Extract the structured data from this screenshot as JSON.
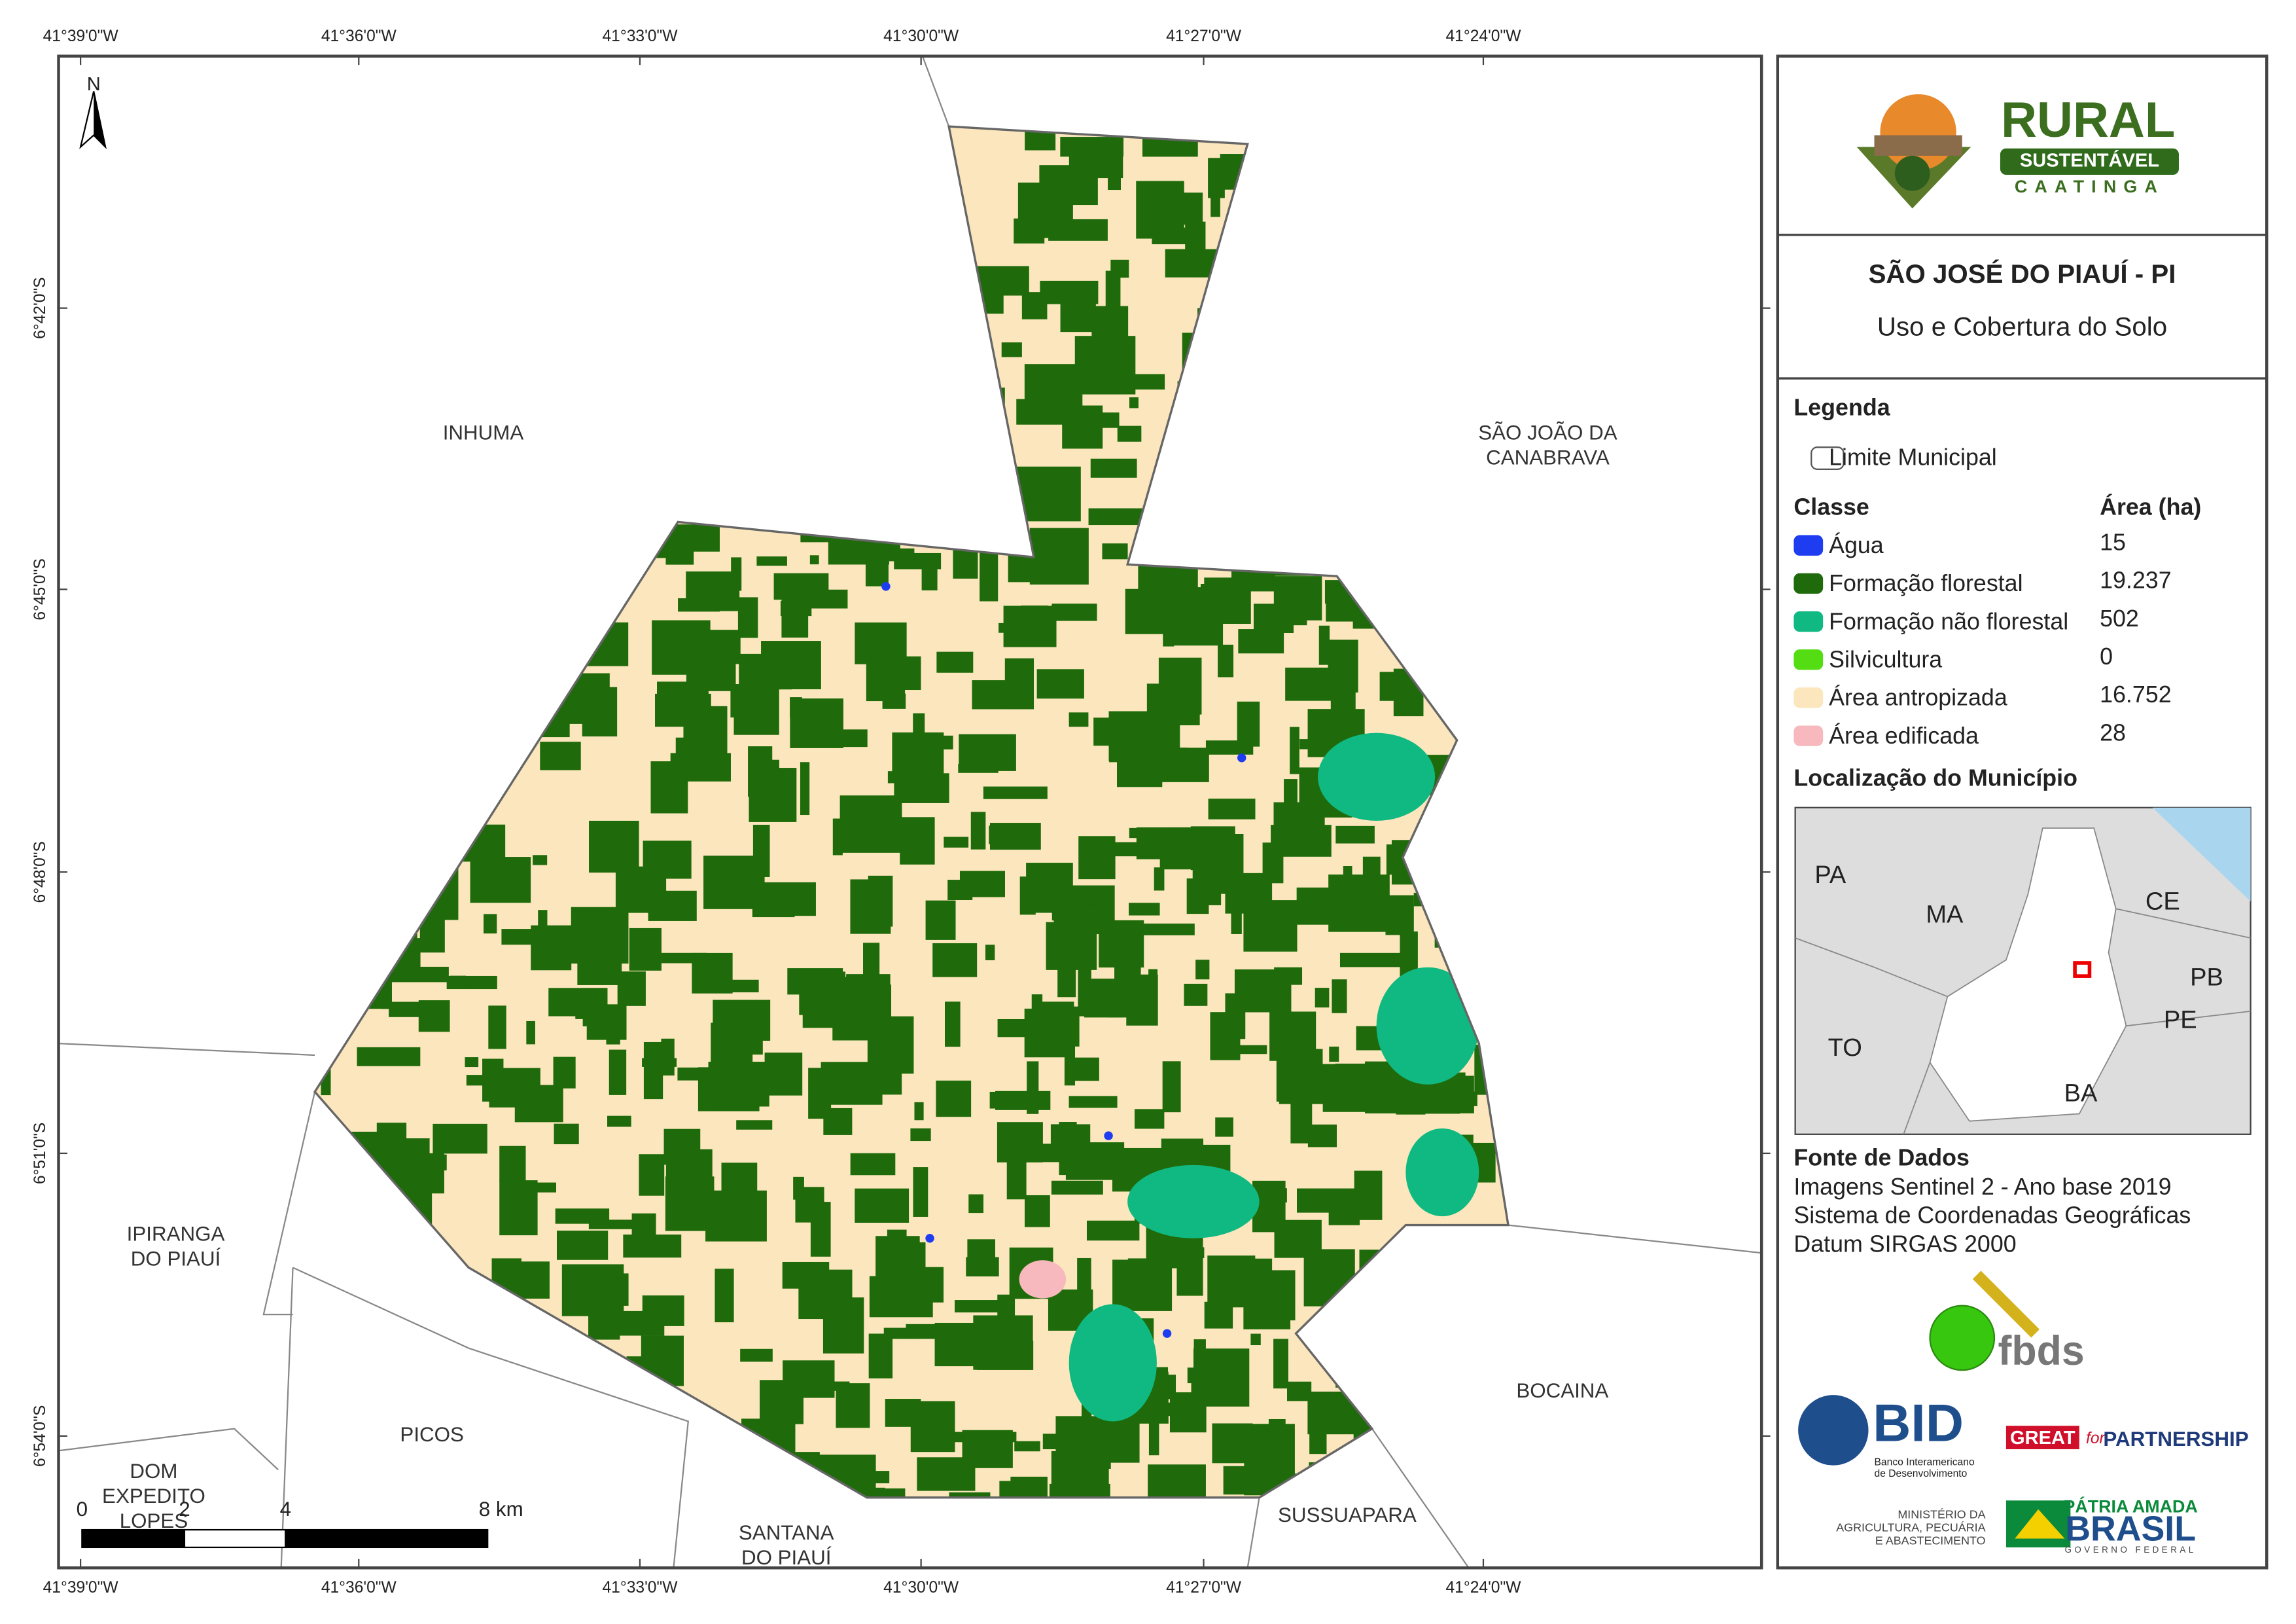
{
  "map": {
    "longitude_labels": [
      "41°39'0\"W",
      "41°36'0\"W",
      "41°33'0\"W",
      "41°30'0\"W",
      "41°27'0\"W",
      "41°24'0\"W"
    ],
    "latitude_labels": [
      "6°42'0\"S",
      "6°45'0\"S",
      "6°48'0\"S",
      "6°51'0\"S",
      "6°54'0\"S"
    ],
    "neighbors": [
      {
        "lines": [
          "INHUMA"
        ]
      },
      {
        "lines": [
          "SÃO JOÃO DA",
          "CANABRAVA"
        ]
      },
      {
        "lines": [
          "IPIRANGA",
          "DO PIAUÍ"
        ]
      },
      {
        "lines": [
          "PICOS"
        ]
      },
      {
        "lines": [
          "DOM",
          "EXPEDITO",
          "LOPES"
        ]
      },
      {
        "lines": [
          "SANTANA",
          "DO PIAUÍ"
        ]
      },
      {
        "lines": [
          "SUSSUAPARA"
        ]
      },
      {
        "lines": [
          "BOCAINA"
        ]
      }
    ],
    "north": "N",
    "scale_bar": [
      "0",
      "2",
      "4",
      "8 km"
    ]
  },
  "logo": {
    "name": "RURAL",
    "tagline": "SUSTENTÁVEL",
    "region": "CAATINGA"
  },
  "title": "SÃO JOSÉ DO PIAUÍ - PI",
  "subtitle": "Uso e Cobertura do Solo",
  "legend": {
    "title": "Legenda",
    "boundary": "Limite Municipal",
    "class_header": "Classe",
    "area_header": "Área (ha)",
    "classes": [
      {
        "name": "Água",
        "color": "#1f3df0",
        "area": "15"
      },
      {
        "name": "Formação florestal",
        "color": "#1f6b0b",
        "area": "19.237"
      },
      {
        "name": "Formação não florestal",
        "color": "#10b981",
        "area": "502"
      },
      {
        "name": "Silvicultura",
        "color": "#55dd14",
        "area": "0"
      },
      {
        "name": "Área antropizada",
        "color": "#fbe6bd",
        "area": "16.752"
      },
      {
        "name": "Área edificada",
        "color": "#f7b9bd",
        "area": "28"
      }
    ]
  },
  "location": {
    "title": "Localização do Município",
    "labels": [
      "PA",
      "MA",
      "CE",
      "PB",
      "PE",
      "TO",
      "BA"
    ]
  },
  "sources": {
    "title": "Fonte de Dados",
    "lines": [
      "Imagens Sentinel 2 - Ano base 2019",
      "Sistema de Coordenadas Geográficas",
      "Datum SIRGAS 2000"
    ]
  },
  "partners": {
    "fbds": "fbds",
    "bid": "BID",
    "bid_full": [
      "Banco Interamericano",
      "de Desenvolvimento"
    ],
    "great": "GREAT",
    "for": "for",
    "partnership": "PARTNERSHIP",
    "ministry": [
      "MINISTÉRIO DA",
      "AGRICULTURA, PECUÁRIA",
      "E ABASTECIMENTO"
    ],
    "patria": "PÁTRIA AMADA",
    "brasil": "BRASIL",
    "governo": "GOVERNO FEDERAL"
  }
}
